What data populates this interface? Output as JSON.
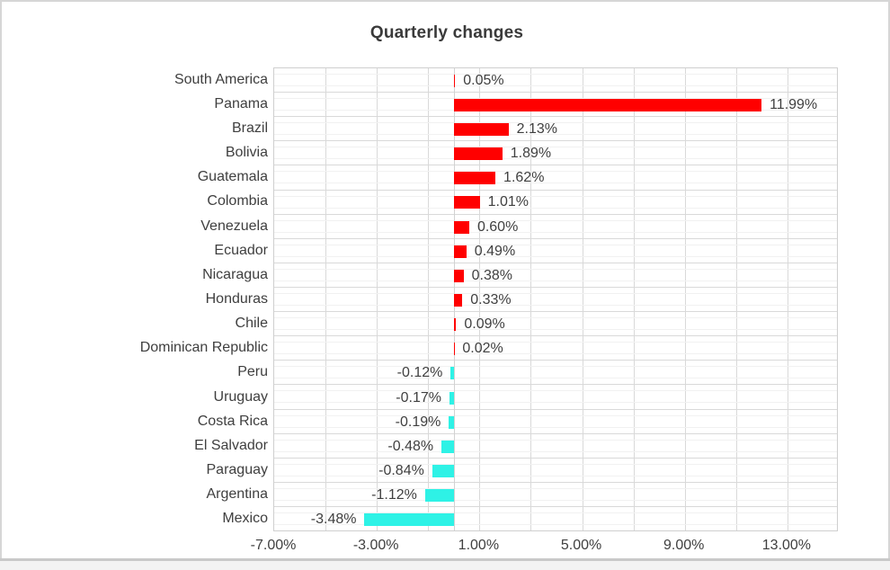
{
  "window": {
    "title": "Quarterly changes"
  },
  "chart_data": {
    "type": "bar",
    "orientation": "horizontal",
    "title": "Quarterly changes",
    "categories": [
      "South America",
      "Panama",
      "Brazil",
      "Bolivia",
      "Guatemala",
      "Colombia",
      "Venezuela",
      "Ecuador",
      "Nicaragua",
      "Honduras",
      "Chile",
      "Dominican Republic",
      "Peru",
      "Uruguay",
      "Costa Rica",
      "El Salvador",
      "Paraguay",
      "Argentina",
      "Mexico"
    ],
    "values": [
      0.05,
      11.99,
      2.13,
      1.89,
      1.62,
      1.01,
      0.6,
      0.49,
      0.38,
      0.33,
      0.09,
      0.02,
      -0.12,
      -0.17,
      -0.19,
      -0.48,
      -0.84,
      -1.12,
      -3.48
    ],
    "data_labels": [
      "0.05%",
      "11.99%",
      "2.13%",
      "1.89%",
      "1.62%",
      "1.01%",
      "0.60%",
      "0.49%",
      "0.38%",
      "0.33%",
      "0.09%",
      "0.02%",
      "-0.12%",
      "-0.17%",
      "-0.19%",
      "-0.48%",
      "-0.84%",
      "-1.12%",
      "-3.48%"
    ],
    "xlabel": "",
    "ylabel": "",
    "xlim": [
      -7,
      15
    ],
    "x_tick_values": [
      -7,
      -3,
      1,
      5,
      9,
      13
    ],
    "x_tick_labels": [
      "-7.00%",
      "-3.00%",
      "1.00%",
      "5.00%",
      "9.00%",
      "13.00%"
    ],
    "gridline_step_percent": 2,
    "grid": true,
    "legend": false,
    "colors": {
      "positive_bar": "#ff0000",
      "negative_bar": "#2ef2e6",
      "gridline": "#d9d9d9",
      "text": "#3f3f3f"
    }
  }
}
